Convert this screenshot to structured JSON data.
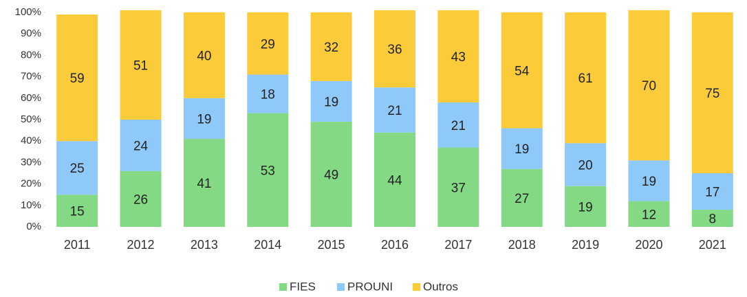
{
  "chart_data": {
    "type": "bar",
    "stacked": true,
    "categories": [
      "2011",
      "2012",
      "2013",
      "2014",
      "2015",
      "2016",
      "2017",
      "2018",
      "2019",
      "2020",
      "2021"
    ],
    "series": [
      {
        "name": "FIES",
        "color": "#84d984",
        "values": [
          15,
          26,
          41,
          53,
          49,
          44,
          37,
          27,
          19,
          12,
          8
        ]
      },
      {
        "name": "PROUNI",
        "color": "#8fc9f9",
        "values": [
          25,
          24,
          19,
          18,
          19,
          21,
          21,
          19,
          20,
          19,
          17
        ]
      },
      {
        "name": "Outros",
        "color": "#fccb3a",
        "values": [
          59,
          51,
          40,
          29,
          32,
          36,
          43,
          54,
          61,
          70,
          75
        ]
      }
    ],
    "ylim": [
      0,
      100
    ],
    "yticks": [
      {
        "value": 0,
        "label": "0%"
      },
      {
        "value": 10,
        "label": "10%"
      },
      {
        "value": 20,
        "label": "20%"
      },
      {
        "value": 30,
        "label": "30%"
      },
      {
        "value": 40,
        "label": "40%"
      },
      {
        "value": 50,
        "label": "50%"
      },
      {
        "value": 60,
        "label": "60%"
      },
      {
        "value": 70,
        "label": "70%"
      },
      {
        "value": 80,
        "label": "80%"
      },
      {
        "value": 90,
        "label": "90%"
      },
      {
        "value": 100,
        "label": "100%"
      }
    ],
    "legend": "bottom"
  }
}
